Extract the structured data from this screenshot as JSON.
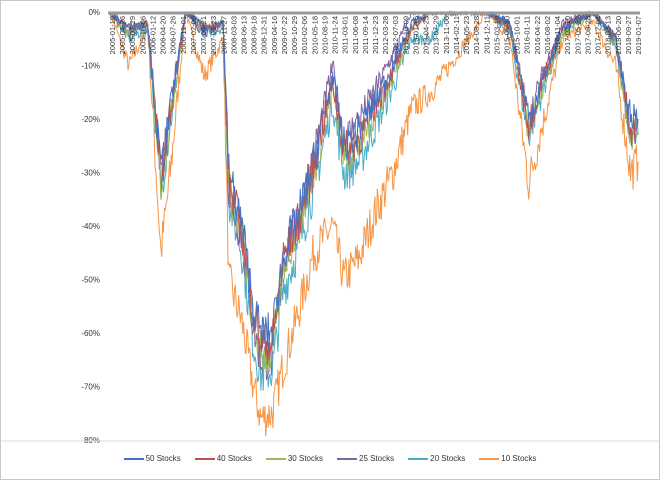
{
  "chart_data": {
    "type": "line",
    "title": "",
    "xlabel": "",
    "ylabel": "",
    "ylim": [
      -80,
      0
    ],
    "yticks": [
      "0%",
      "-10%",
      "-20%",
      "-30%",
      "-40%",
      "-50%",
      "-60%",
      "-70%",
      "-80%"
    ],
    "ytick_values": [
      0,
      -10,
      -20,
      -30,
      -40,
      -50,
      -60,
      -70,
      -80
    ],
    "xlim": [
      2005.0,
      2019.05
    ],
    "xtick_labels": [
      "2005-01-19",
      "2005-04-26",
      "2005-07-29",
      "2005-10-06",
      "2006-01-12",
      "2006-04-20",
      "2006-07-26",
      "2006-11-01",
      "2007-02-08",
      "2007-05-21",
      "2007-08-23",
      "2007-11-27",
      "2008-03-03",
      "2008-06-13",
      "2008-09-18",
      "2008-12-31",
      "2009-04-16",
      "2009-07-22",
      "2009-10-29",
      "2010-02-06",
      "2010-05-18",
      "2010-08-19",
      "2010-11-24",
      "2011-03-01",
      "2011-06-08",
      "2011-09-14",
      "2011-12-23",
      "2012-03-28",
      "2012-07-03",
      "2012-10-09",
      "2013-01-16",
      "2013-04-23",
      "2013-07-29",
      "2013-11-06",
      "2014-02-11",
      "2014-05-23",
      "2014-08-28",
      "2014-12-11",
      "2015-03-19",
      "2015-06-30",
      "2015-10-01",
      "2016-01-11",
      "2016-04-22",
      "2016-08-02",
      "2016-11-04",
      "2017-02-10",
      "2017-05-22",
      "2017-08-28",
      "2017-12-04",
      "2018-03-13",
      "2018-06-20",
      "2018-09-27",
      "2019-01-07"
    ],
    "legend_position": "bottom",
    "grid": false,
    "x": [
      2005.0,
      2005.5,
      2006.0,
      2006.35,
      2006.6,
      2007.0,
      2007.5,
      2008.0,
      2008.15,
      2008.5,
      2008.8,
      2009.0,
      2009.3,
      2009.6,
      2010.0,
      2010.4,
      2010.9,
      2011.2,
      2011.6,
      2012.0,
      2012.5,
      2013.0,
      2013.5,
      2014.0,
      2015.0,
      2015.6,
      2016.1,
      2016.5,
      2017.0,
      2017.8,
      2018.4,
      2018.8,
      2019.0
    ],
    "series": [
      {
        "name": "50 Stocks",
        "color": "#4472C4",
        "values": [
          0,
          -3,
          -2,
          -30,
          -18,
          0,
          -3,
          -2,
          -30,
          -40,
          -55,
          -60,
          -60,
          -45,
          -38,
          -28,
          -12,
          -25,
          -22,
          -17,
          -10,
          -2,
          0,
          0,
          0,
          -2,
          -20,
          -12,
          -3,
          0,
          -5,
          -20,
          -20
        ]
      },
      {
        "name": "40 Stocks",
        "color": "#C0504D",
        "values": [
          0,
          -3,
          -2,
          -31,
          -19,
          0,
          -3,
          -2,
          -32,
          -41,
          -56,
          -62,
          -62,
          -46,
          -39,
          -29,
          -13,
          -26,
          -24,
          -18,
          -11,
          -3,
          0,
          0,
          0,
          -3,
          -21,
          -12,
          -3,
          0,
          -5,
          -22,
          -21
        ]
      },
      {
        "name": "30 Stocks",
        "color": "#9BBB59",
        "values": [
          0,
          -4,
          -2,
          -32,
          -20,
          0,
          -3,
          -2,
          -33,
          -42,
          -58,
          -64,
          -64,
          -47,
          -40,
          -30,
          -14,
          -27,
          -25,
          -19,
          -12,
          -3,
          0,
          0,
          0,
          -3,
          -22,
          -13,
          -4,
          0,
          -6,
          -23,
          -22
        ]
      },
      {
        "name": "25 Stocks",
        "color": "#8064A2",
        "values": [
          0,
          -4,
          -2,
          -30,
          -18,
          0,
          -4,
          -2,
          -34,
          -42,
          -59,
          -65,
          -65,
          -46,
          -39,
          -27,
          -10,
          -24,
          -20,
          -15,
          -8,
          0,
          0,
          0,
          0,
          -2,
          -20,
          -11,
          -2,
          0,
          -5,
          -22,
          -21
        ]
      },
      {
        "name": "20 Stocks",
        "color": "#4BACC6",
        "values": [
          0,
          -5,
          -3,
          -33,
          -21,
          0,
          -4,
          -3,
          -35,
          -45,
          -62,
          -68,
          -67,
          -52,
          -44,
          -33,
          -17,
          -30,
          -28,
          -22,
          -14,
          -5,
          -5,
          0,
          0,
          -4,
          -23,
          -14,
          -4,
          0,
          -6,
          -24,
          -23
        ]
      },
      {
        "name": "10 Stocks",
        "color": "#F79646",
        "values": [
          0,
          -10,
          -3,
          -45,
          -30,
          0,
          -12,
          -5,
          -50,
          -58,
          -70,
          -76,
          -75,
          -66,
          -56,
          -45,
          -40,
          -50,
          -46,
          -38,
          -30,
          -18,
          -15,
          -10,
          0,
          -5,
          -32,
          -20,
          -5,
          -2,
          -10,
          -30,
          -28
        ]
      }
    ]
  }
}
